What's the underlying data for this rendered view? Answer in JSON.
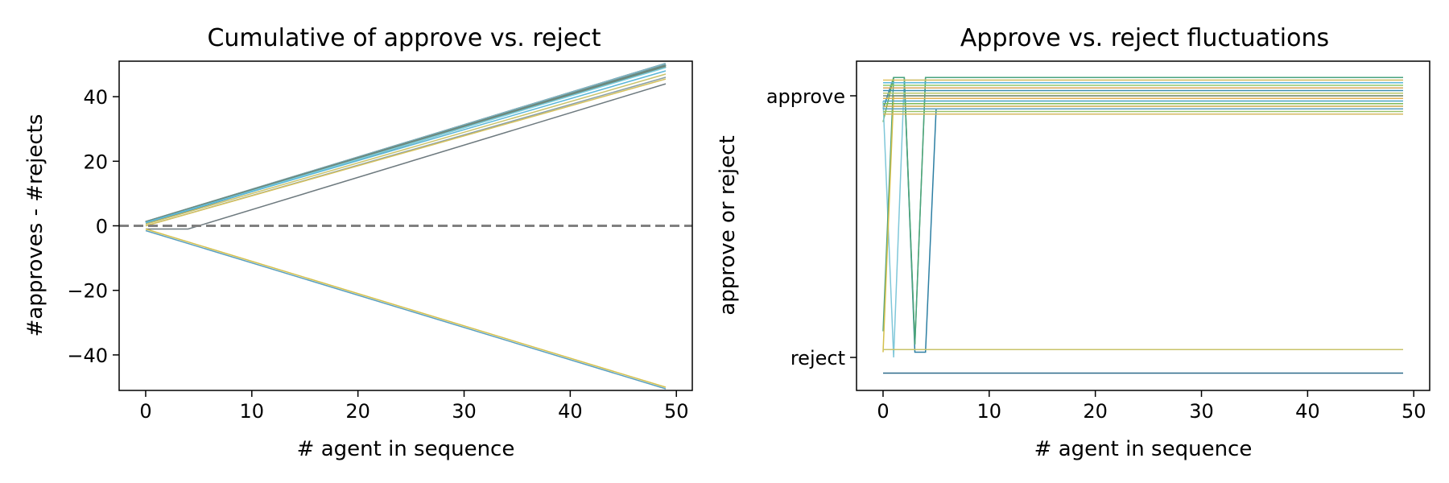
{
  "chart_data": [
    {
      "type": "line",
      "title": "Cumulative of approve vs. reject",
      "xlabel": "# agent in sequence",
      "ylabel": "#approves - #rejects",
      "xlim": [
        -2.5,
        51.5
      ],
      "ylim": [
        -51,
        51
      ],
      "xticks": [
        0,
        10,
        20,
        30,
        40,
        50
      ],
      "yticks": [
        -40,
        -20,
        0,
        20,
        40
      ],
      "ytick_labels": [
        "−40",
        "−20",
        "0",
        "20",
        "40"
      ],
      "reference_line": {
        "y": 0,
        "style": "dashed",
        "color": "#808080"
      },
      "grid": false,
      "series": [
        {
          "color": "#6c8a7f",
          "values": [
            1,
            50
          ]
        },
        {
          "color": "#9a9a9a",
          "values": [
            1,
            50
          ]
        },
        {
          "color": "#6c8a7f",
          "values": [
            1,
            50
          ]
        },
        {
          "color": "#7fb3c4",
          "values": [
            1,
            50
          ]
        },
        {
          "color": "#6c8a7f",
          "values": [
            1,
            49.5
          ]
        },
        {
          "color": "#7fd1e0",
          "values": [
            1,
            49
          ]
        },
        {
          "color": "#5ab7d9",
          "values": [
            1,
            48
          ]
        },
        {
          "color": "#c9c36a",
          "values": [
            0.5,
            47
          ]
        },
        {
          "color": "#8aa0a6",
          "values": [
            0,
            46
          ]
        },
        {
          "color": "#d6c25e",
          "values": [
            0,
            45.5
          ]
        },
        {
          "color": "#6e7a7f",
          "points": [
            [
              0,
              -1
            ],
            [
              4,
              -1
            ],
            [
              49,
              44
            ]
          ]
        },
        {
          "color": "#d4c04c",
          "values": [
            -1,
            -50
          ]
        },
        {
          "color": "#5a9fbe",
          "values": [
            -1.5,
            -50.5
          ]
        }
      ]
    },
    {
      "type": "line",
      "title": "Approve vs. reject fluctuations",
      "xlabel": "# agent in sequence",
      "ylabel": "approve or reject",
      "xlim": [
        -2.5,
        51.5
      ],
      "xticks": [
        0,
        10,
        20,
        30,
        40,
        50
      ],
      "ytick_labels": [
        "reject",
        "approve"
      ],
      "grid": false,
      "series": [
        {
          "color": "#2d7fa3",
          "points": [
            [
              0,
              0.95
            ],
            [
              1,
              1.07
            ],
            [
              2,
              1.07
            ],
            [
              3,
              0.02
            ],
            [
              4,
              0.02
            ],
            [
              5,
              0.95
            ],
            [
              49,
              0.95
            ]
          ]
        },
        {
          "color": "#6ab04c",
          "points": [
            [
              0,
              0.9
            ],
            [
              1,
              1.07
            ],
            [
              2,
              1.07
            ],
            [
              3,
              0.05
            ],
            [
              4,
              1.07
            ],
            [
              49,
              1.07
            ]
          ]
        },
        {
          "color": "#7fc7d9",
          "points": [
            [
              0,
              0.98
            ],
            [
              1,
              0.0
            ],
            [
              2,
              1.06
            ],
            [
              49,
              1.06
            ]
          ]
        },
        {
          "color": "#4aa37f",
          "points": [
            [
              0,
              0.1
            ],
            [
              1,
              1.07
            ],
            [
              2,
              1.07
            ],
            [
              3,
              0.05
            ],
            [
              4,
              1.07
            ],
            [
              49,
              1.07
            ]
          ]
        },
        {
          "color": "#d4c04c",
          "points": [
            [
              0,
              0.02
            ],
            [
              1,
              1.0
            ],
            [
              49,
              1.0
            ]
          ]
        },
        {
          "color": "#c9c36a",
          "points": [
            [
              0,
              0.03
            ],
            [
              49,
              0.03
            ]
          ]
        },
        {
          "color": "#2d6a8a",
          "points": [
            [
              0,
              -0.06
            ],
            [
              49,
              -0.06
            ]
          ]
        },
        {
          "color": "#e0c060",
          "points": [
            [
              0,
              1.06
            ],
            [
              49,
              1.06
            ]
          ]
        },
        {
          "color": "#5ab7d9",
          "points": [
            [
              0,
              1.05
            ],
            [
              49,
              1.05
            ]
          ]
        },
        {
          "color": "#8fc76a",
          "points": [
            [
              0,
              1.04
            ],
            [
              49,
              1.04
            ]
          ]
        },
        {
          "color": "#d9a65a",
          "points": [
            [
              0,
              1.03
            ],
            [
              49,
              1.03
            ]
          ]
        },
        {
          "color": "#3f8fb0",
          "points": [
            [
              0,
              1.02
            ],
            [
              49,
              1.02
            ]
          ]
        },
        {
          "color": "#b8c86a",
          "points": [
            [
              0,
              1.01
            ],
            [
              49,
              1.01
            ]
          ]
        },
        {
          "color": "#6c8a7f",
          "points": [
            [
              0,
              1.0
            ],
            [
              49,
              1.0
            ]
          ]
        },
        {
          "color": "#e0b050",
          "points": [
            [
              0,
              0.99
            ],
            [
              49,
              0.99
            ]
          ]
        },
        {
          "color": "#4aa3c4",
          "points": [
            [
              0,
              0.98
            ],
            [
              49,
              0.98
            ]
          ]
        },
        {
          "color": "#7ab85a",
          "points": [
            [
              0,
              0.97
            ],
            [
              49,
              0.97
            ]
          ]
        },
        {
          "color": "#c9a84c",
          "points": [
            [
              0,
              0.96
            ],
            [
              49,
              0.96
            ]
          ]
        },
        {
          "color": "#5a9fbe",
          "points": [
            [
              0,
              0.95
            ],
            [
              49,
              0.95
            ]
          ]
        },
        {
          "color": "#9ac26a",
          "points": [
            [
              0,
              0.94
            ],
            [
              49,
              0.94
            ]
          ]
        },
        {
          "color": "#d6b860",
          "points": [
            [
              0,
              0.93
            ],
            [
              49,
              0.93
            ]
          ]
        }
      ]
    }
  ]
}
